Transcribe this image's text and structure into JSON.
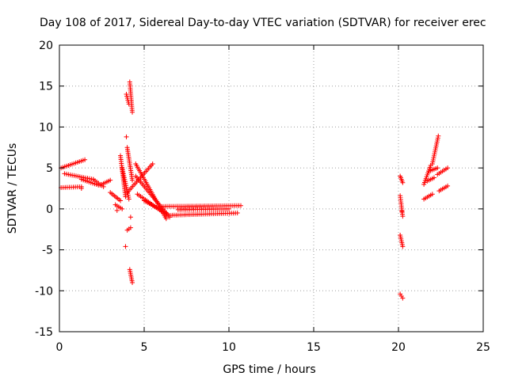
{
  "chart_data": {
    "type": "scatter",
    "title": "Day 108 of 2017, Sidereal Day-to-day VTEC variation (SDTVAR) for receiver erec",
    "xlabel": "GPS time / hours",
    "ylabel": "SDTVAR / TECUs",
    "xlim": [
      0,
      25
    ],
    "ylim": [
      -15,
      20
    ],
    "xticks": [
      0,
      5,
      10,
      15,
      20,
      25
    ],
    "yticks": [
      -15,
      -10,
      -5,
      0,
      5,
      10,
      15,
      20
    ],
    "grid": true,
    "marker": "+",
    "series_color": "#ff0000",
    "segments": [
      {
        "x": [
          0.1,
          1.5
        ],
        "y": [
          5.0,
          6.0
        ]
      },
      {
        "x": [
          0.1,
          1.3
        ],
        "y": [
          2.6,
          2.7
        ]
      },
      {
        "x": [
          0.3,
          2.0
        ],
        "y": [
          4.3,
          3.6
        ]
      },
      {
        "x": [
          1.3,
          2.3
        ],
        "y": [
          3.6,
          2.9
        ]
      },
      {
        "x": [
          2.0,
          2.6
        ],
        "y": [
          3.6,
          2.7
        ]
      },
      {
        "x": [
          2.4,
          3.0
        ],
        "y": [
          2.9,
          3.5
        ]
      },
      {
        "x": [
          3.0,
          3.6
        ],
        "y": [
          2.0,
          1.0
        ]
      },
      {
        "x": [
          3.3,
          3.7
        ],
        "y": [
          0.5,
          0.0
        ]
      },
      {
        "x": [
          3.6,
          3.9
        ],
        "y": [
          6.5,
          1.5
        ]
      },
      {
        "x": [
          3.7,
          4.1
        ],
        "y": [
          5.0,
          1.2
        ]
      },
      {
        "x": [
          4.0,
          4.3
        ],
        "y": [
          7.5,
          3.5
        ]
      },
      {
        "x": [
          3.95,
          4.1
        ],
        "y": [
          14.0,
          12.8
        ]
      },
      {
        "x": [
          4.15,
          4.3
        ],
        "y": [
          15.5,
          11.8
        ]
      },
      {
        "x": [
          4.0,
          4.2
        ],
        "y": [
          -2.6,
          -2.3
        ]
      },
      {
        "x": [
          4.15,
          4.3
        ],
        "y": [
          -7.4,
          -9.0
        ]
      },
      {
        "x": [
          4.0,
          5.5
        ],
        "y": [
          2.0,
          5.5
        ]
      },
      {
        "x": [
          4.5,
          6.3
        ],
        "y": [
          5.5,
          -1.2
        ]
      },
      {
        "x": [
          4.5,
          6.5
        ],
        "y": [
          4.0,
          -1.0
        ]
      },
      {
        "x": [
          4.6,
          6.1
        ],
        "y": [
          1.8,
          -0.4
        ]
      },
      {
        "x": [
          5.0,
          6.3
        ],
        "y": [
          1.0,
          -0.5
        ]
      },
      {
        "x": [
          6.3,
          10.5
        ],
        "y": [
          -0.8,
          -0.5
        ]
      },
      {
        "x": [
          6.0,
          10.7
        ],
        "y": [
          0.3,
          0.4
        ]
      },
      {
        "x": [
          7.0,
          10.0
        ],
        "y": [
          -0.1,
          0.0
        ]
      },
      {
        "x": [
          20.1,
          20.25
        ],
        "y": [
          4.0,
          3.2
        ]
      },
      {
        "x": [
          20.1,
          20.25
        ],
        "y": [
          1.6,
          -0.9
        ]
      },
      {
        "x": [
          20.1,
          20.25
        ],
        "y": [
          -3.2,
          -4.6
        ]
      },
      {
        "x": [
          20.1,
          20.25
        ],
        "y": [
          -10.4,
          -10.9
        ]
      },
      {
        "x": [
          21.5,
          21.9
        ],
        "y": [
          3.0,
          5.3
        ]
      },
      {
        "x": [
          21.5,
          22.0
        ],
        "y": [
          1.2,
          1.8
        ]
      },
      {
        "x": [
          21.7,
          22.1
        ],
        "y": [
          3.4,
          3.8
        ]
      },
      {
        "x": [
          22.0,
          22.35
        ],
        "y": [
          5.5,
          8.9
        ]
      },
      {
        "x": [
          21.8,
          22.3
        ],
        "y": [
          4.6,
          5.0
        ]
      },
      {
        "x": [
          22.3,
          22.9
        ],
        "y": [
          4.2,
          5.0
        ]
      },
      {
        "x": [
          22.4,
          22.9
        ],
        "y": [
          2.2,
          2.8
        ]
      }
    ],
    "points": [
      {
        "x": 1.3,
        "y": 2.5
      },
      {
        "x": 3.95,
        "y": 8.8
      },
      {
        "x": 3.9,
        "y": -4.6
      },
      {
        "x": 4.2,
        "y": -1.0
      },
      {
        "x": 3.4,
        "y": -0.2
      },
      {
        "x": 20.2,
        "y": -0.3
      }
    ]
  }
}
